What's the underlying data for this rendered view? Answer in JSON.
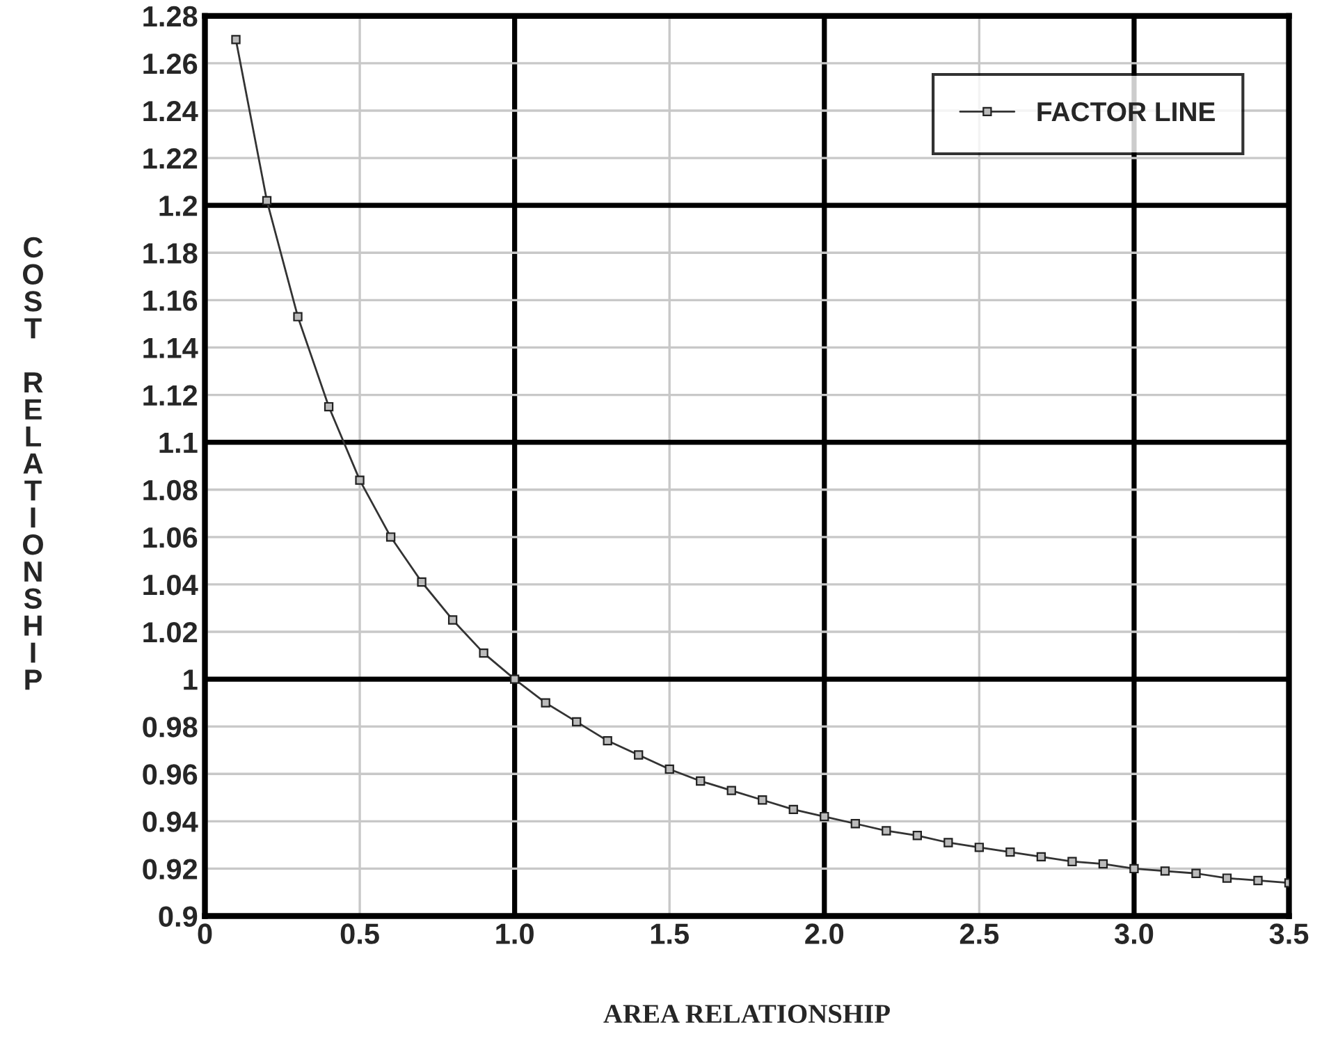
{
  "chart_data": {
    "type": "line",
    "xlabel": "AREA RELATIONSHIP",
    "ylabel": "COST RELATIONSHIP",
    "x": [
      0.1,
      0.2,
      0.3,
      0.4,
      0.5,
      0.6,
      0.7,
      0.8,
      0.9,
      1.0,
      1.1,
      1.2,
      1.3,
      1.4,
      1.5,
      1.6,
      1.7,
      1.8,
      1.9,
      2.0,
      2.1,
      2.2,
      2.3,
      2.4,
      2.5,
      2.6,
      2.7,
      2.8,
      2.9,
      3.0,
      3.1,
      3.2,
      3.3,
      3.4,
      3.5
    ],
    "series": [
      {
        "name": "FACTOR LINE",
        "color": "#333333",
        "values": [
          1.27,
          1.202,
          1.153,
          1.115,
          1.084,
          1.06,
          1.041,
          1.025,
          1.011,
          1.0,
          0.99,
          0.982,
          0.974,
          0.968,
          0.962,
          0.957,
          0.953,
          0.949,
          0.945,
          0.942,
          0.939,
          0.936,
          0.934,
          0.931,
          0.929,
          0.927,
          0.925,
          0.923,
          0.922,
          0.92,
          0.919,
          0.918,
          0.916,
          0.915,
          0.914
        ]
      }
    ],
    "xlim": [
      0,
      3.5
    ],
    "ylim": [
      0.9,
      1.28
    ],
    "xticks": [
      0,
      0.5,
      {
        "value": 1.0,
        "label": "1.0"
      },
      1.5,
      {
        "value": 2.0,
        "label": "2.0"
      },
      2.5,
      {
        "value": 3.0,
        "label": "3.0"
      },
      3.5
    ],
    "yticks": [
      0.9,
      0.92,
      0.94,
      0.96,
      0.98,
      {
        "value": 1.0,
        "label": "1"
      },
      1.02,
      1.04,
      1.06,
      1.08,
      1.1,
      1.12,
      1.14,
      1.16,
      1.18,
      1.2,
      1.22,
      1.24,
      1.26,
      1.28
    ],
    "grid": true,
    "legend": "top right",
    "marker": "square",
    "line_style": "solid"
  }
}
